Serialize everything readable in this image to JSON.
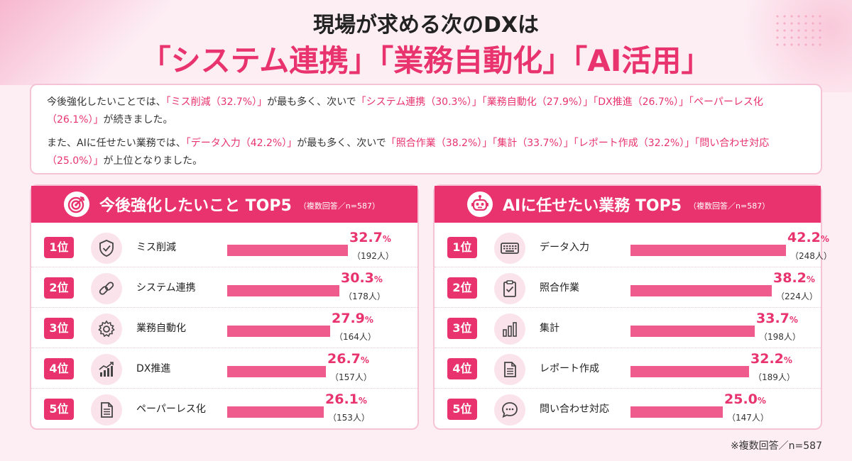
{
  "title": {
    "line1": "現場が求める次のDXは",
    "line2": "「システム連携」「業務自動化」「AI活用」"
  },
  "summary": {
    "p1": [
      {
        "t": "今後強化したいことでは、",
        "hl": false
      },
      {
        "t": "「ミス削減（32.7%）」",
        "hl": true
      },
      {
        "t": "が最も多く、次いで",
        "hl": false
      },
      {
        "t": "「システム連携（30.3%）」「業務自動化（27.9%）」「DX推進（26.7%）」「ペーパーレス化（26.1%）」",
        "hl": true
      },
      {
        "t": "が続きました。",
        "hl": false
      }
    ],
    "p2": [
      {
        "t": "また、AIに任せたい業務では、",
        "hl": false
      },
      {
        "t": "「データ入力（42.2%）」",
        "hl": true
      },
      {
        "t": "が最も多く、次いで",
        "hl": false
      },
      {
        "t": "「照合作業（38.2%）」「集計（33.7%）」「レポート作成（32.2%）」「問い合わせ対応（25.0%）」",
        "hl": true
      },
      {
        "t": "が上位となりました。",
        "hl": false
      }
    ]
  },
  "colors": {
    "accent": "#e8336e",
    "bar": "#ee5b8c",
    "icon_bg": "#fbe3ec"
  },
  "footnote": "※複数回答／n=587",
  "chart_data": [
    {
      "type": "bar",
      "title": "今後強化したいこと TOP5",
      "note": "（複数回答／n=587）",
      "header_icon": "target-icon",
      "categories": [
        "ミス削減",
        "システム連携",
        "業務自動化",
        "DX推進",
        "ペーパーレス化"
      ],
      "ranks": [
        "1位",
        "2位",
        "3位",
        "4位",
        "5位"
      ],
      "values": [
        32.7,
        30.3,
        27.9,
        26.7,
        26.1
      ],
      "value_labels": [
        "32.7",
        "30.3",
        "27.9",
        "26.7",
        "26.1"
      ],
      "unit": "%",
      "counts": [
        "（192人）",
        "（178人）",
        "（164人）",
        "（157人）",
        "（153人）"
      ],
      "icons": [
        "shield-check-icon",
        "link-icon",
        "gear-icon",
        "growth-chart-icon",
        "document-icon"
      ],
      "xlim": [
        0,
        50
      ]
    },
    {
      "type": "bar",
      "title": "AIに任せたい業務 TOP5",
      "note": "（複数回答／n=587）",
      "header_icon": "robot-icon",
      "categories": [
        "データ入力",
        "照合作業",
        "集計",
        "レポート作成",
        "問い合わせ対応"
      ],
      "ranks": [
        "1位",
        "2位",
        "3位",
        "4位",
        "5位"
      ],
      "values": [
        42.2,
        38.2,
        33.7,
        32.2,
        25.0
      ],
      "value_labels": [
        "42.2",
        "38.2",
        "33.7",
        "32.2",
        "25.0"
      ],
      "unit": "%",
      "counts": [
        "（248人）",
        "（224人）",
        "（198人）",
        "（189人）",
        "（147人）"
      ],
      "icons": [
        "keyboard-icon",
        "clipboard-check-icon",
        "bar-chart-icon",
        "document-icon",
        "chat-bubble-icon"
      ],
      "xlim": [
        0,
        50
      ]
    }
  ]
}
